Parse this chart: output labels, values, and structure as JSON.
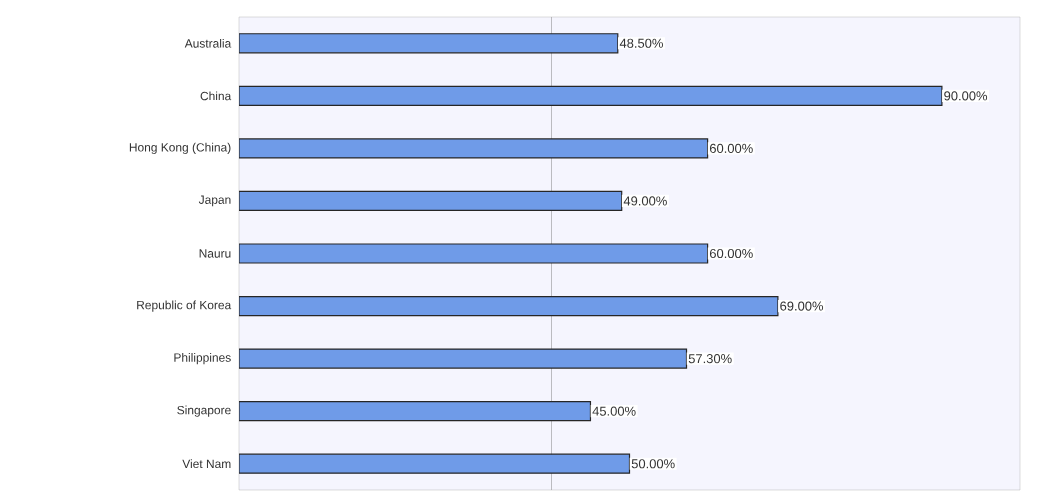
{
  "chart_data": {
    "type": "bar",
    "orientation": "horizontal",
    "categories": [
      "Australia",
      "China",
      "Hong Kong (China)",
      "Japan",
      "Nauru",
      "Republic of Korea",
      "Philippines",
      "Singapore",
      "Viet Nam"
    ],
    "values": [
      48.5,
      90,
      60,
      49,
      60,
      69,
      57.3,
      45,
      50
    ],
    "value_labels": [
      "48.50%",
      "90.00%",
      "60.00%",
      "49.00%",
      "60.00%",
      "69.00%",
      "57.30%",
      "45.00%",
      "50.00%"
    ],
    "color": "#6f9be8",
    "xlim": [
      0,
      100
    ],
    "ref_lines": [
      {
        "axis": "x",
        "value": 40
      }
    ],
    "tick_labels": "y"
  }
}
